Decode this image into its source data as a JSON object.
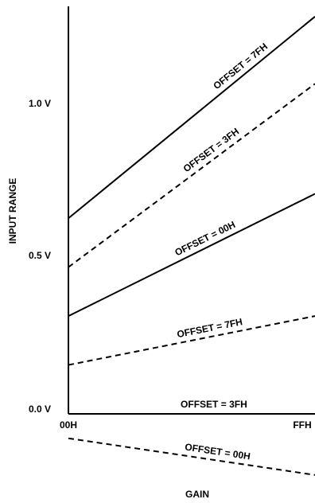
{
  "chart_data": {
    "type": "line",
    "title": "",
    "xlabel": "GAIN",
    "ylabel": "INPUT RANGE",
    "x_ticks": [
      "00H",
      "FFH"
    ],
    "y_ticks": [
      {
        "label": "0.0 V",
        "value": 0.0
      },
      {
        "label": "0.5 V",
        "value": 0.5
      },
      {
        "label": "1.0 V",
        "value": 1.0
      }
    ],
    "ylim": [
      -0.2,
      1.3
    ],
    "series": [
      {
        "name": "OFFSET = 7FH",
        "style": "solid",
        "x": [
          0,
          1
        ],
        "y": [
          0.64,
          1.3
        ]
      },
      {
        "name": "OFFSET = 3FH",
        "style": "dashed",
        "x": [
          0,
          1
        ],
        "y": [
          0.48,
          1.08
        ]
      },
      {
        "name": "OFFSET = 00H",
        "style": "solid",
        "x": [
          0,
          1
        ],
        "y": [
          0.32,
          0.72
        ]
      },
      {
        "name": "OFFSET = 7FH",
        "style": "dashed",
        "x": [
          0,
          1
        ],
        "y": [
          0.16,
          0.32
        ]
      },
      {
        "name": "OFFSET = 3FH",
        "style": "solid",
        "x": [
          0,
          1
        ],
        "y": [
          0.0,
          0.0
        ]
      },
      {
        "name": "OFFSET = 00H",
        "style": "dashed",
        "x": [
          0,
          1
        ],
        "y": [
          -0.08,
          -0.2
        ]
      }
    ]
  }
}
